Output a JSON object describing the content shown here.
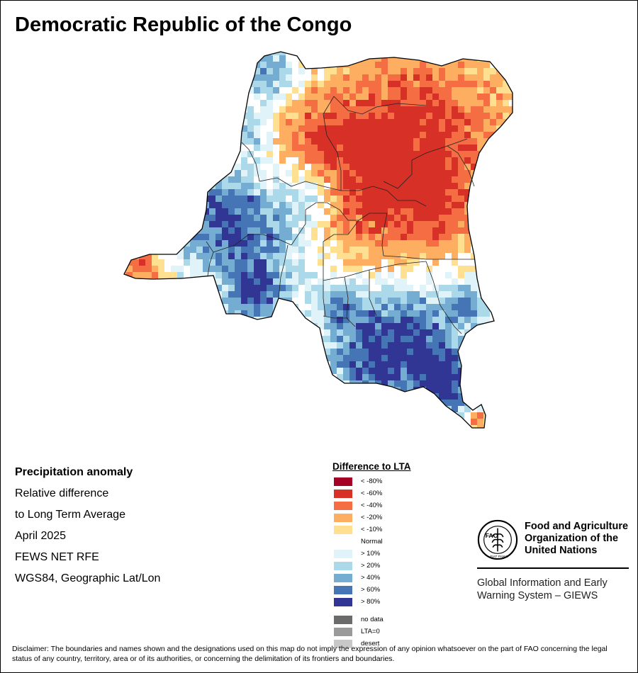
{
  "map": {
    "title": "Democratic Republic of the Congo",
    "description_lines": [
      "Precipitation anomaly",
      "Relative difference",
      "to Long Term Average",
      "April 2025",
      "FEWS NET RFE",
      "WGS84, Geographic Lat/Lon"
    ]
  },
  "legend": {
    "title": "Difference to LTA",
    "classes": [
      {
        "label": "< -80%",
        "color": "#a50026"
      },
      {
        "label": "< -60%",
        "color": "#d73027"
      },
      {
        "label": "< -40%",
        "color": "#f46d43"
      },
      {
        "label": "< -20%",
        "color": "#fdae61"
      },
      {
        "label": "< -10%",
        "color": "#fee090"
      },
      {
        "label": "Normal",
        "color": "#ffffff"
      },
      {
        "label": "> 10%",
        "color": "#e0f3f8"
      },
      {
        "label": "> 20%",
        "color": "#abd9e9"
      },
      {
        "label": "> 40%",
        "color": "#74add1"
      },
      {
        "label": "> 60%",
        "color": "#4575b4"
      },
      {
        "label": "> 80%",
        "color": "#313695"
      }
    ],
    "special": [
      {
        "label": "no data",
        "color": "#6b6b6b"
      },
      {
        "label": "LTA=0",
        "color": "#9a9a9a"
      },
      {
        "label": "desert",
        "color": "#c8c8c8"
      }
    ]
  },
  "organization": {
    "name_lines": [
      "Food and Agriculture",
      "Organization of the",
      "United Nations"
    ],
    "logo_text": "FAO",
    "logo_motto": "FIAT PANIS",
    "system_lines": [
      "Global Information and Early",
      "Warning System – GIEWS"
    ]
  },
  "disclaimer": "Disclaimer: The boundaries and names shown and the designations used on this map do not imply the expression of any opinion whatsoever on the part of FAO concerning the legal status of any country, territory, area or of its authorities, or concerning the delimitation of its frontiers and boundaries."
}
